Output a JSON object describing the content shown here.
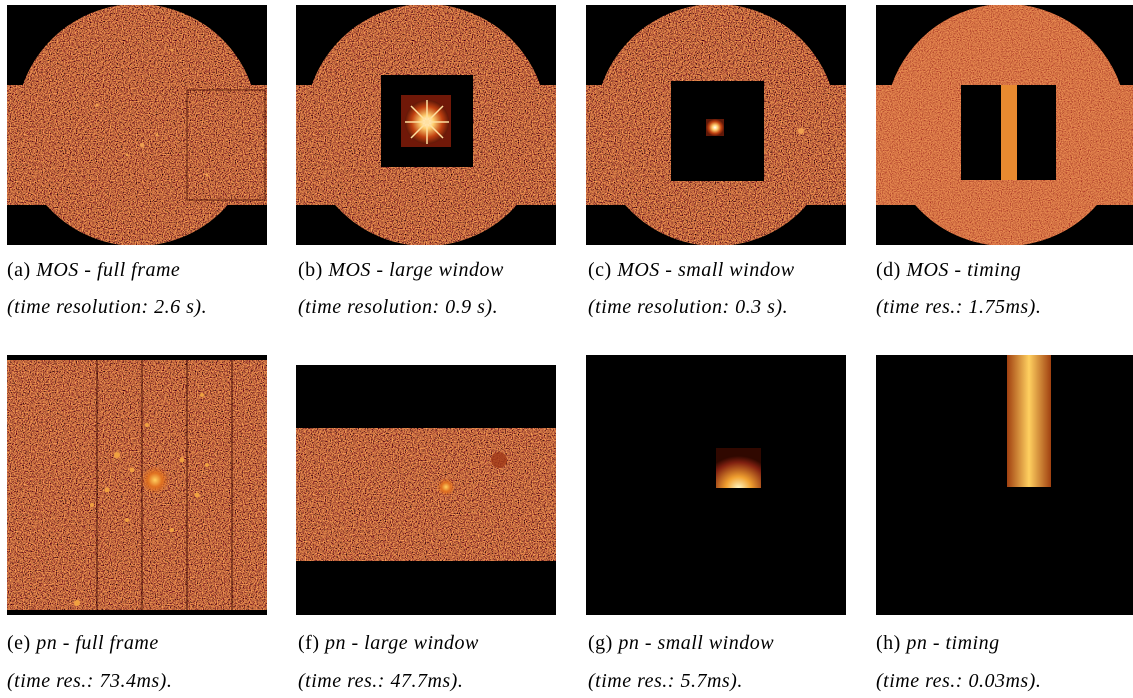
{
  "panels": [
    {
      "label": "(a)",
      "title": "MOS - full frame",
      "detail": "(time resolution: 2.6 s)."
    },
    {
      "label": "(b)",
      "title": "MOS - large window",
      "detail": "(time resolution: 0.9 s)."
    },
    {
      "label": "(c)",
      "title": "MOS - small window",
      "detail": "(time resolution: 0.3 s)."
    },
    {
      "label": "(d)",
      "title": "MOS - timing",
      "detail": "(time res.: 1.75ms)."
    },
    {
      "label": "(e)",
      "title": "pn - full frame",
      "detail": "(time res.: 73.4ms)."
    },
    {
      "label": "(f)",
      "title": "pn - large window",
      "detail": "(time res.: 47.7ms)."
    },
    {
      "label": "(g)",
      "title": "pn - small window",
      "detail": "(time res.: 5.7ms)."
    },
    {
      "label": "(h)",
      "title": "pn - timing",
      "detail": "(time res.: 0.03ms)."
    }
  ]
}
